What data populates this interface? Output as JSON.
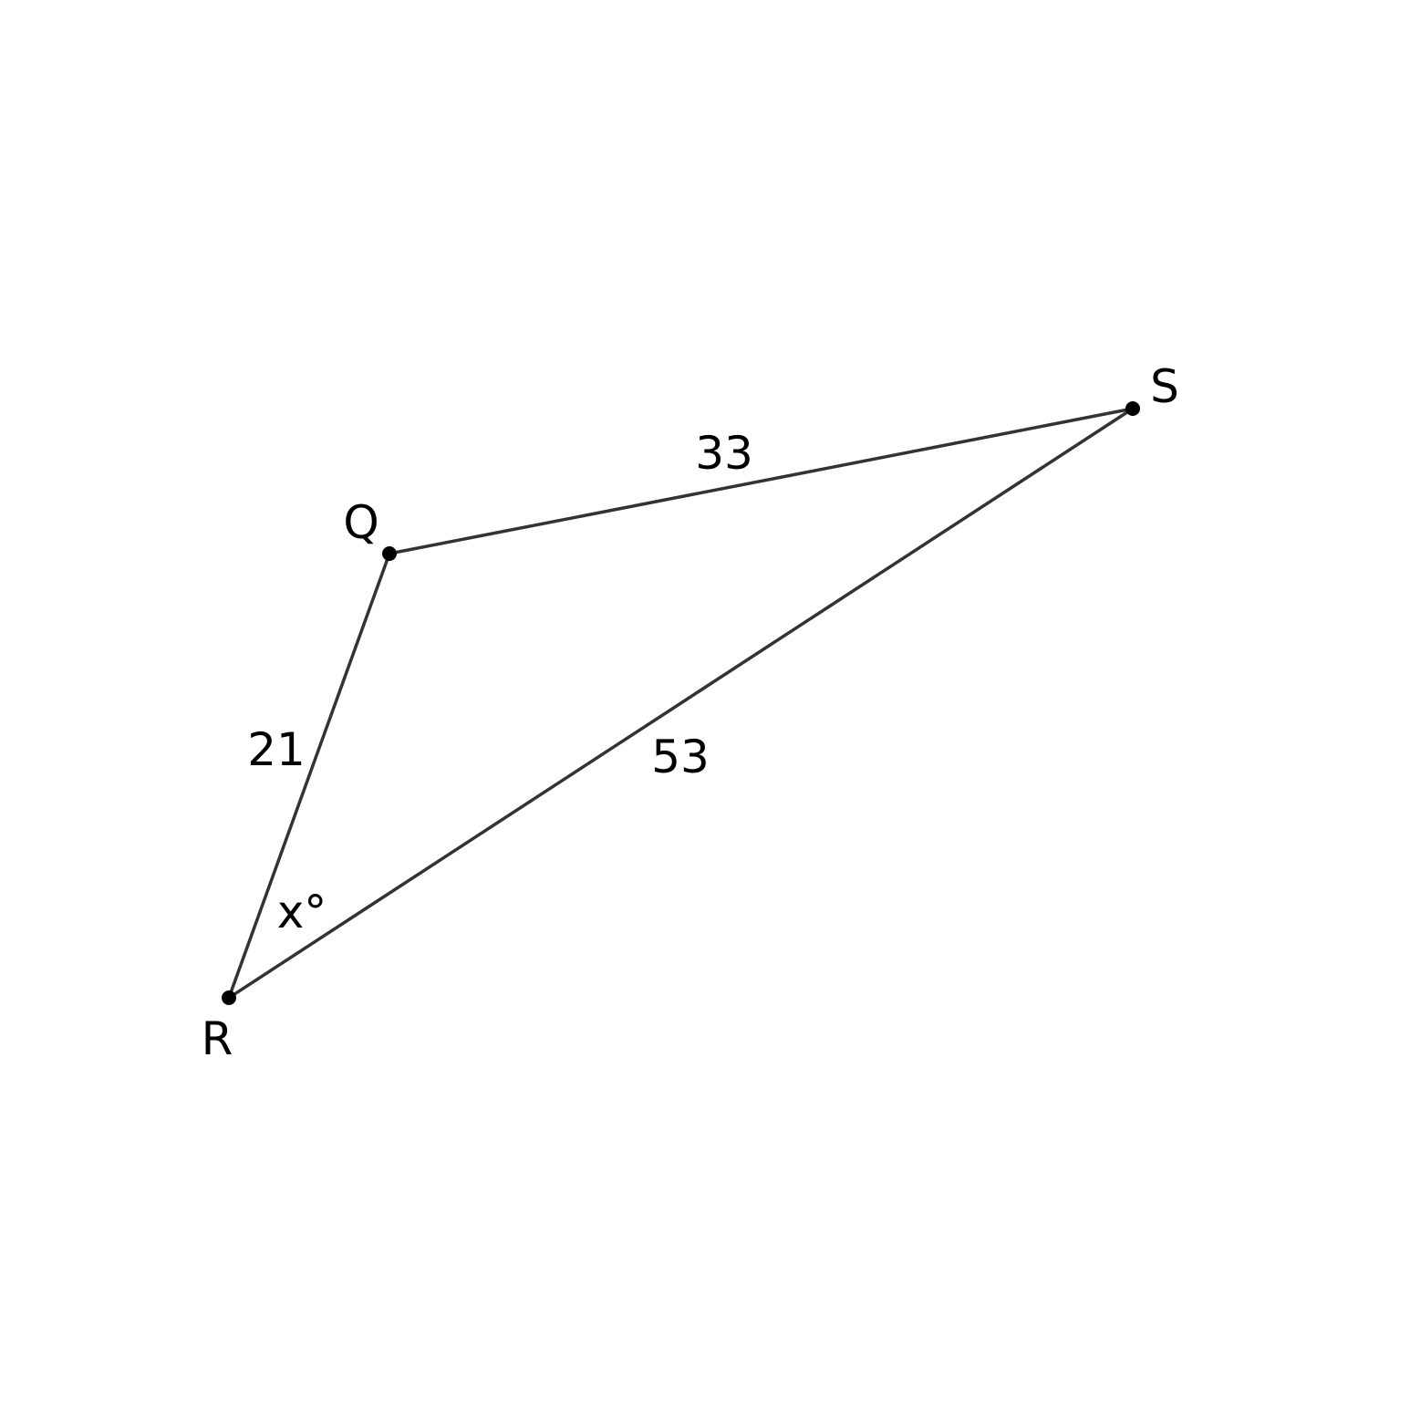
{
  "colors": {
    "line": "#333333",
    "vertex": "#000000",
    "text": "#000000",
    "background": "#ffffff"
  },
  "vertices": {
    "Q": "Q",
    "R": "R",
    "S": "S"
  },
  "sides": {
    "QR": "21",
    "QS": "33",
    "RS": "53"
  },
  "angle": {
    "R": "x°"
  }
}
